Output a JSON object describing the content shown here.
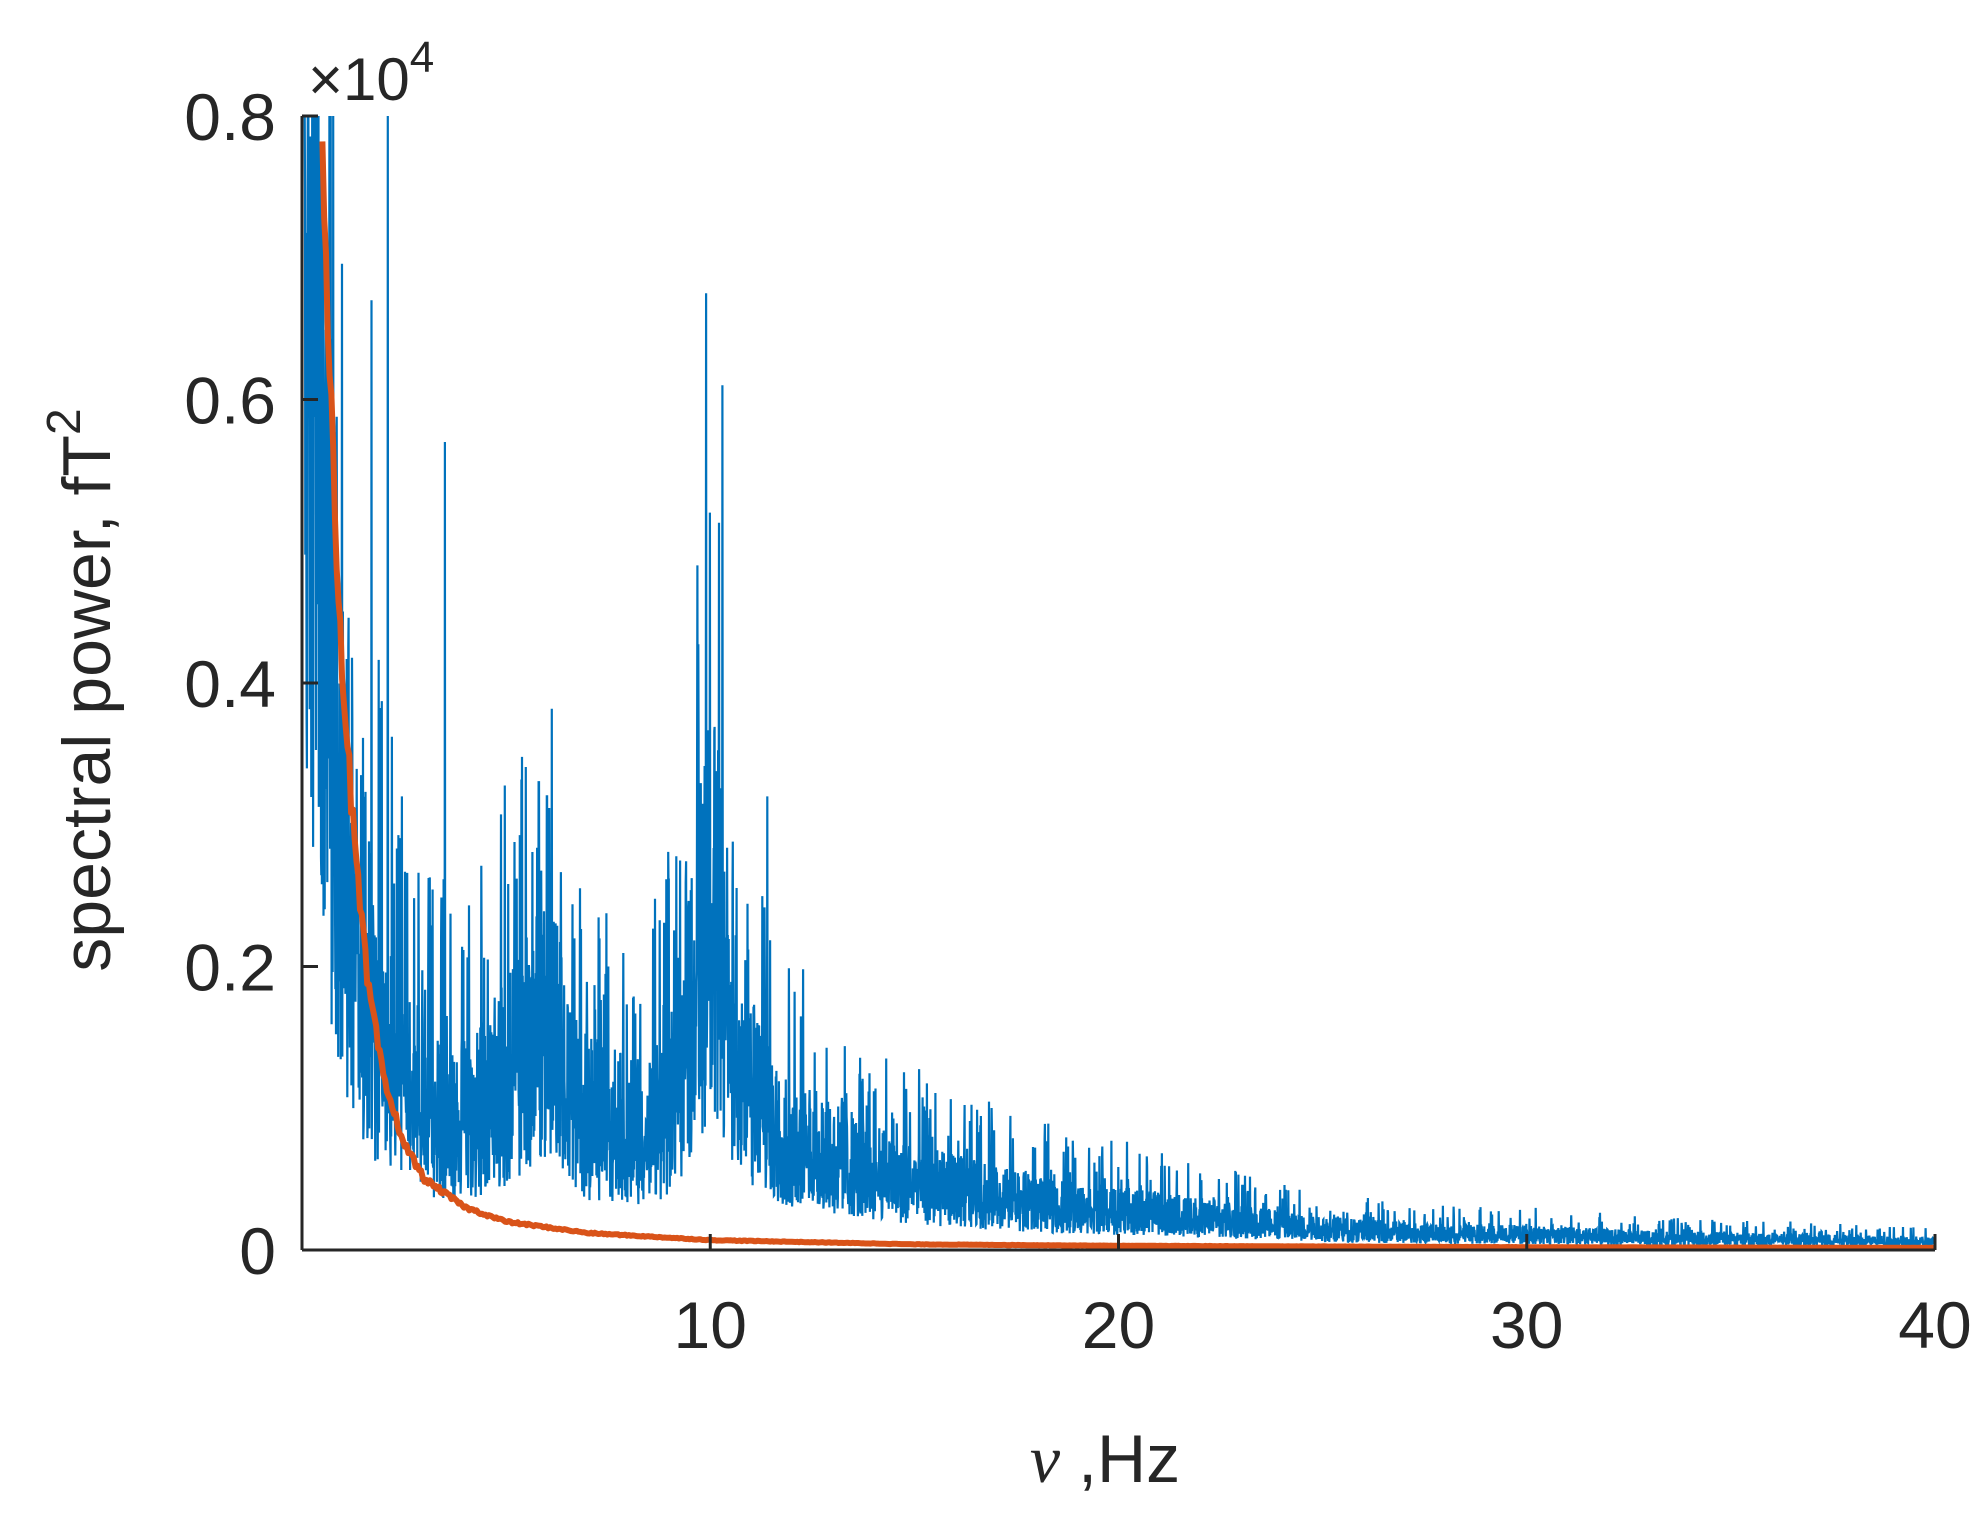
{
  "chart_data": {
    "type": "line",
    "title": "",
    "xlabel_symbol": "ν",
    "xlabel_unit": ",Hz",
    "ylabel": "spectral power, fT",
    "ylabel_superscript": "2",
    "y_multiplier": "×10",
    "y_multiplier_exponent": "4",
    "xlim": [
      0,
      40
    ],
    "ylim": [
      0,
      0.8
    ],
    "x_ticks": [
      10,
      20,
      30,
      40
    ],
    "y_ticks": [
      0,
      0.2,
      0.4,
      0.6,
      0.8
    ],
    "y_tick_labels": [
      "0",
      "0.2",
      "0.4",
      "0.6",
      "0.8"
    ],
    "x_tick_labels": [
      "10",
      "20",
      "30",
      "40"
    ],
    "grid": false,
    "legend": "none",
    "series": [
      {
        "color": "#0072BD",
        "style": "noisy spectrum",
        "x": [
          0.1,
          0.3,
          0.5,
          0.8,
          1.0,
          1.5,
          2.0,
          2.5,
          3.0,
          3.5,
          4.0,
          4.5,
          5.0,
          5.5,
          6.0,
          6.5,
          7.0,
          7.5,
          8.0,
          8.5,
          9.0,
          9.5,
          10.0,
          10.5,
          11.0,
          11.5,
          12.0,
          13.0,
          14.0,
          15.0,
          16.0,
          18.0,
          20.0,
          22.0,
          25.0,
          28.0,
          30.0,
          33.0,
          36.0,
          40.0
        ],
        "y": [
          0.8,
          0.7,
          0.55,
          0.42,
          0.33,
          0.22,
          0.15,
          0.13,
          0.11,
          0.1,
          0.1,
          0.11,
          0.13,
          0.15,
          0.19,
          0.12,
          0.1,
          0.1,
          0.09,
          0.09,
          0.11,
          0.17,
          0.27,
          0.18,
          0.12,
          0.1,
          0.08,
          0.07,
          0.06,
          0.05,
          0.045,
          0.035,
          0.03,
          0.025,
          0.016,
          0.012,
          0.012,
          0.009,
          0.008,
          0.006
        ],
        "peaks": [
          {
            "x": 2.1,
            "y": 0.8
          },
          {
            "x": 1.7,
            "y": 0.67
          },
          {
            "x": 3.5,
            "y": 0.57
          },
          {
            "x": 5.8,
            "y": 0.33
          },
          {
            "x": 6.0,
            "y": 0.32
          },
          {
            "x": 7.5,
            "y": 0.2
          },
          {
            "x": 9.9,
            "y": 0.675
          },
          {
            "x": 10.3,
            "y": 0.61
          },
          {
            "x": 11.4,
            "y": 0.32
          }
        ]
      },
      {
        "color": "#D95319",
        "style": "1/f fit",
        "x": [
          0.5,
          0.7,
          0.9,
          1.1,
          1.3,
          1.6,
          2.0,
          2.5,
          3.0,
          4.0,
          5.0,
          7.0,
          10.0,
          15.0,
          20.0,
          30.0,
          40.0
        ],
        "y": [
          0.8,
          0.6,
          0.46,
          0.36,
          0.28,
          0.19,
          0.12,
          0.075,
          0.05,
          0.03,
          0.02,
          0.012,
          0.007,
          0.004,
          0.003,
          0.002,
          0.0015
        ]
      }
    ]
  }
}
